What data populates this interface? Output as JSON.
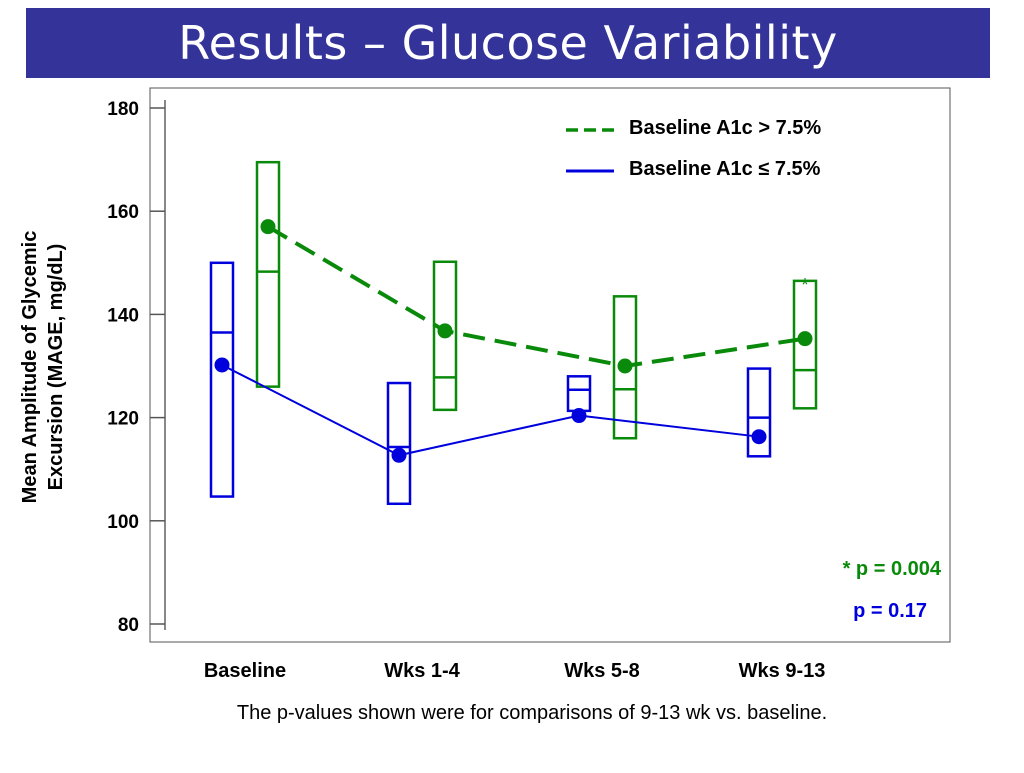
{
  "slide": {
    "title": "Results – Glucose Variability",
    "footnote": "The p-values shown were for comparisons of 9-13 wk vs. baseline."
  },
  "colors": {
    "title_bg": "#333399",
    "high_series": "#0a8a0a",
    "low_series": "#0000dd"
  },
  "chart_data": {
    "type": "line",
    "ylabel_line1": "Mean Amplitude of Glycemic",
    "ylabel_line2": "Excursion (MAGE, mg/dL)",
    "ylim": [
      80,
      180
    ],
    "yticks": [
      80,
      100,
      120,
      140,
      160,
      180
    ],
    "categories": [
      "Baseline",
      "Wks 1-4",
      "Wks 5-8",
      "Wks 9-13"
    ],
    "series": [
      {
        "name": "Baseline A1c > 7.5%",
        "style": "dashed",
        "color": "#0a8a0a",
        "means": [
          157,
          136.8,
          130,
          135.3
        ],
        "box_low": [
          126,
          121.5,
          116,
          121.8
        ],
        "box_mid": [
          148.3,
          127.8,
          125.5,
          129.2
        ],
        "box_high": [
          169.5,
          150.2,
          143.5,
          146.5
        ]
      },
      {
        "name": "Baseline A1c ≤ 7.5%",
        "style": "solid",
        "color": "#0000dd",
        "means": [
          130.2,
          112.7,
          120.4,
          116.3
        ],
        "box_low": [
          104.7,
          103.3,
          121.3,
          112.5
        ],
        "box_mid": [
          136.5,
          114.3,
          125.4,
          120
        ],
        "box_high": [
          150,
          126.7,
          128,
          129.5
        ]
      }
    ],
    "annotations": [
      {
        "text": "*",
        "color": "#0a8a0a",
        "target": "high-series-wks9-13"
      },
      {
        "text": "* p = 0.004",
        "color": "#0a8a0a"
      },
      {
        "text": "p = 0.17",
        "color": "#0000dd"
      }
    ]
  }
}
